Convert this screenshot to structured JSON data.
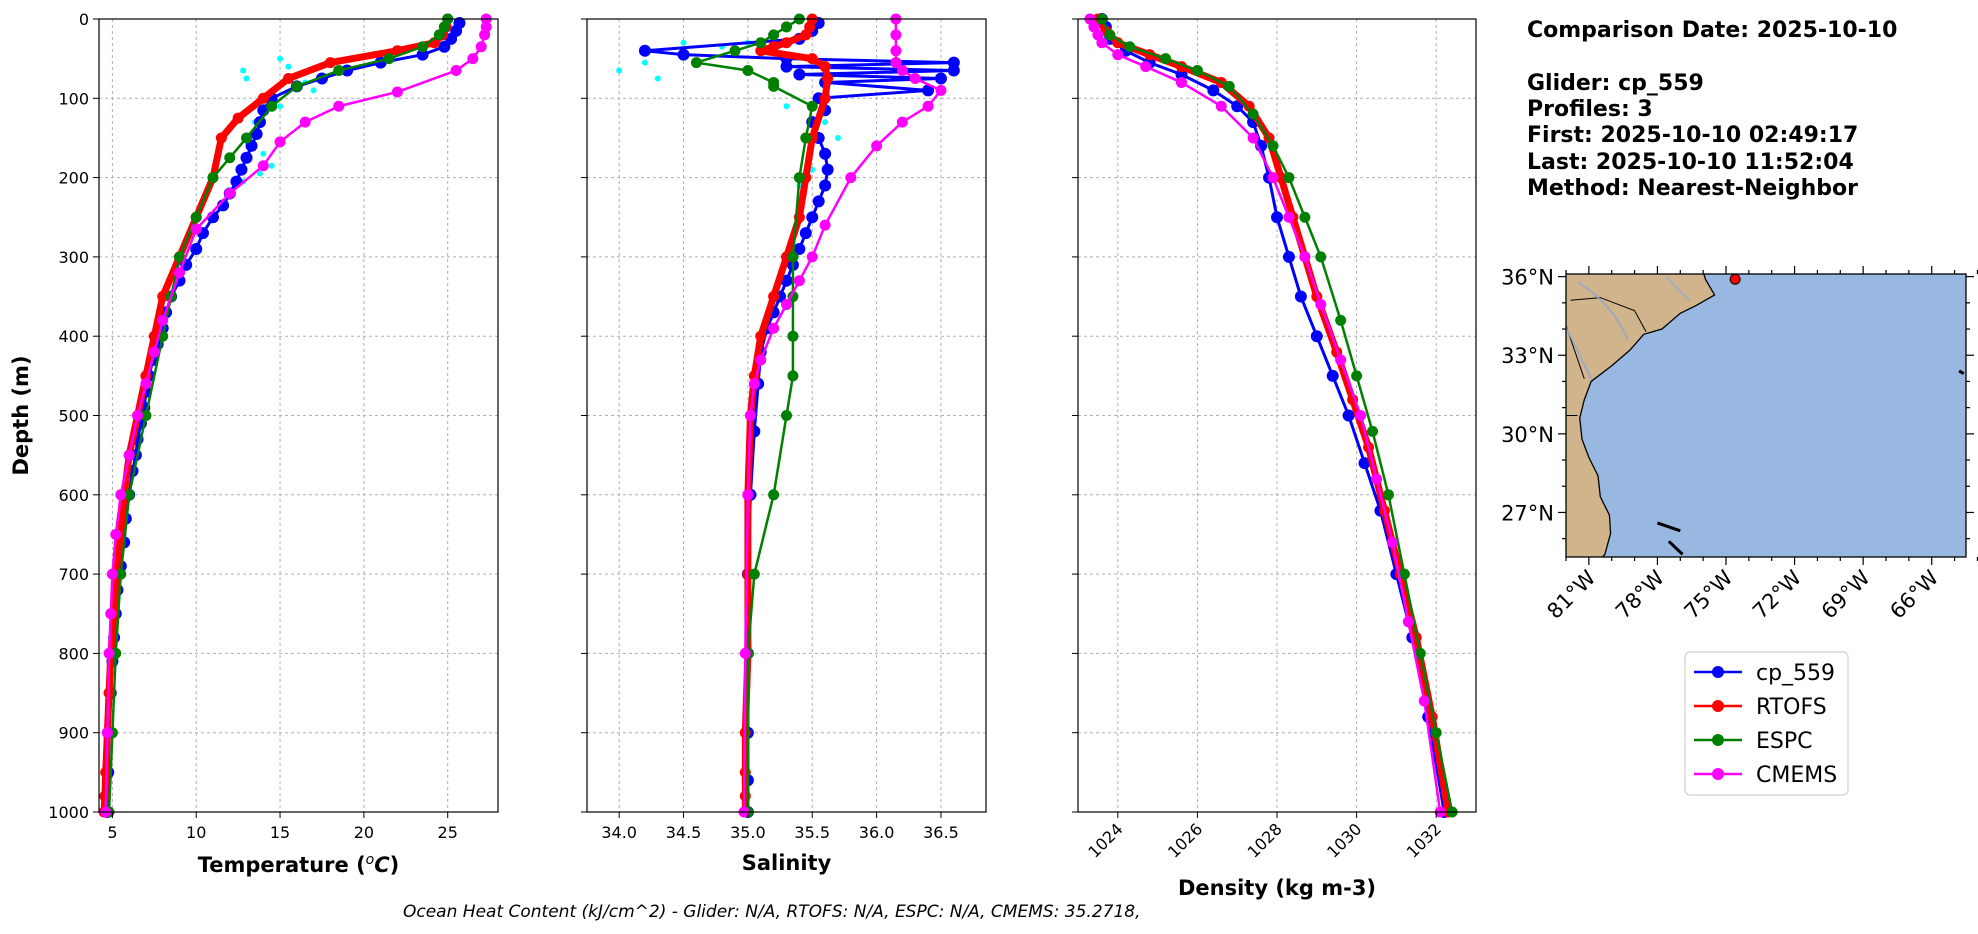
{
  "colors": {
    "cp_559": "#0000ff",
    "RTOFS": "#ff0000",
    "ESPC": "#008000",
    "CMEMS": "#ff00ff",
    "raw_glider": "#00ffff",
    "ocean": "#98b8e2",
    "land": "#d2b48c",
    "grid": "#b0b0b0"
  },
  "info": {
    "comparison_date": "Comparison Date: 2025-10-10",
    "glider": "Glider: cp_559",
    "profiles": "Profiles: 3",
    "first": "First: 2025-10-10 02:49:17",
    "last": "Last: 2025-10-10 11:52:04",
    "method": "Method: Nearest-Neighbor"
  },
  "footer": "Ocean Heat Content (kJ/cm^2) - Glider: N/A,  RTOFS: N/A,  ESPC: N/A,  CMEMS: 35.2718,",
  "legend": {
    "placement": "below-map",
    "entries": [
      "cp_559",
      "RTOFS",
      "ESPC",
      "CMEMS"
    ]
  },
  "map": {
    "lon_ticks": [
      "81°W",
      "78°W",
      "75°W",
      "72°W",
      "69°W",
      "66°W"
    ],
    "lat_ticks": [
      "36°N",
      "33°N",
      "30°N",
      "27°N"
    ],
    "lon_values": [
      -81,
      -78,
      -75,
      -72,
      -69,
      -66
    ],
    "lat_values": [
      36,
      33,
      30,
      27
    ],
    "lon_range": [
      -82,
      -64.5
    ],
    "lat_range": [
      25.3,
      36.1
    ],
    "glider_position": {
      "lon": -74.6,
      "lat": 35.9
    }
  },
  "chart_data": [
    {
      "type": "line",
      "panel": "temperature",
      "xlabel": "Temperature (°C)",
      "ylabel": "Depth (m)",
      "xlim": [
        4.2,
        28
      ],
      "ylim": [
        1000,
        0
      ],
      "y_inverted": true,
      "grid": true,
      "xticks": [
        5,
        10,
        15,
        20,
        25
      ],
      "yticks": [
        0,
        100,
        200,
        300,
        400,
        500,
        600,
        700,
        800,
        900,
        1000
      ],
      "series": [
        {
          "name": "cp_559",
          "kind": "glider",
          "x": [
            25.7,
            25.5,
            25.2,
            24.8,
            23.5,
            21.0,
            19.0,
            17.5,
            16.0,
            14.5,
            14.0,
            13.8,
            13.6,
            13.3,
            13.0,
            12.7,
            12.4,
            12.0,
            11.6,
            11.0,
            10.4,
            10.0,
            9.4,
            9.0,
            8.5,
            8.2,
            8.0,
            7.7,
            7.4,
            7.2,
            7.0,
            6.9,
            6.7,
            6.5,
            6.4,
            6.2,
            6.0,
            5.8,
            5.7,
            5.5,
            5.3,
            5.2,
            5.1,
            5.0,
            4.9,
            4.8,
            4.75,
            4.7
          ],
          "y": [
            5,
            15,
            25,
            35,
            45,
            55,
            65,
            75,
            85,
            100,
            115,
            130,
            145,
            160,
            175,
            190,
            205,
            220,
            235,
            250,
            270,
            290,
            310,
            330,
            350,
            370,
            390,
            410,
            430,
            450,
            470,
            490,
            510,
            530,
            550,
            570,
            600,
            630,
            660,
            690,
            720,
            750,
            780,
            810,
            850,
            900,
            950,
            1000
          ]
        },
        {
          "name": "RTOFS",
          "kind": "model",
          "x": [
            25.0,
            24.9,
            24.7,
            24.2,
            22.0,
            18.0,
            15.5,
            14.0,
            12.5,
            11.5,
            11.0,
            10.0,
            9.0,
            8.0,
            7.5,
            7.0,
            6.5,
            6.0,
            5.7,
            5.5,
            5.2,
            5.1,
            4.9,
            4.8,
            4.7,
            4.6,
            4.55,
            4.5
          ],
          "y": [
            0,
            10,
            20,
            30,
            40,
            55,
            75,
            100,
            125,
            150,
            200,
            250,
            300,
            350,
            400,
            450,
            500,
            550,
            600,
            650,
            700,
            750,
            800,
            850,
            900,
            950,
            980,
            1000
          ]
        },
        {
          "name": "ESPC",
          "kind": "model",
          "x": [
            25.0,
            24.8,
            24.5,
            23.5,
            21.5,
            18.5,
            16.0,
            14.5,
            13.0,
            12.0,
            11.0,
            10.0,
            9.0,
            8.5,
            8.0,
            7.0,
            6.0,
            5.5,
            5.2,
            5.0,
            4.8
          ],
          "y": [
            0,
            10,
            20,
            35,
            50,
            65,
            85,
            110,
            150,
            175,
            200,
            250,
            300,
            350,
            400,
            500,
            600,
            700,
            800,
            900,
            1000
          ]
        },
        {
          "name": "CMEMS",
          "kind": "model",
          "x": [
            27.3,
            27.3,
            27.2,
            27.0,
            26.5,
            25.5,
            22.0,
            18.5,
            16.5,
            15.0,
            14.0,
            12.0,
            10.0,
            9.0,
            8.0,
            7.5,
            7.0,
            6.5,
            6.0,
            5.5,
            5.2,
            5.0,
            4.9,
            4.8,
            4.7,
            4.6
          ],
          "y": [
            0,
            10,
            20,
            35,
            50,
            65,
            92,
            110,
            130,
            155,
            185,
            220,
            265,
            320,
            380,
            420,
            460,
            500,
            550,
            600,
            650,
            700,
            750,
            800,
            900,
            1000
          ]
        },
        {
          "name": "",
          "kind": "raw",
          "x": [
            15.0,
            12.8,
            13.0,
            15.5,
            16.5,
            17.0,
            15.0,
            13.5,
            13.0,
            14.0,
            14.5,
            13.8,
            12.8
          ],
          "y": [
            50,
            65,
            75,
            60,
            80,
            90,
            110,
            130,
            150,
            170,
            185,
            195,
            205
          ]
        }
      ]
    },
    {
      "type": "line",
      "panel": "salinity",
      "xlabel": "Salinity",
      "xlim": [
        33.75,
        36.85
      ],
      "ylim": [
        1000,
        0
      ],
      "y_inverted": true,
      "grid": true,
      "xticks": [
        34.0,
        34.5,
        35.0,
        35.5,
        36.0,
        36.5
      ],
      "series": [
        {
          "name": "cp_559",
          "kind": "glider",
          "x": [
            35.55,
            35.5,
            35.4,
            34.2,
            34.5,
            35.3,
            36.6,
            35.3,
            36.6,
            35.4,
            36.5,
            35.6,
            36.4,
            35.55,
            35.6,
            35.5,
            35.55,
            35.6,
            35.62,
            35.6,
            35.55,
            35.5,
            35.45,
            35.4,
            35.35,
            35.3,
            35.25,
            35.2,
            35.15,
            35.1,
            35.08,
            35.05,
            35.02,
            35.0,
            35.0,
            35.0,
            35.0,
            35.0
          ],
          "y": [
            5,
            15,
            25,
            40,
            45,
            50,
            55,
            60,
            65,
            70,
            75,
            80,
            90,
            100,
            115,
            130,
            150,
            170,
            190,
            210,
            230,
            250,
            270,
            290,
            310,
            330,
            350,
            370,
            390,
            420,
            460,
            520,
            600,
            700,
            800,
            900,
            960,
            1000
          ]
        },
        {
          "name": "RTOFS",
          "kind": "model",
          "x": [
            35.5,
            35.48,
            35.45,
            35.3,
            35.2,
            35.1,
            35.5,
            35.6,
            35.62,
            35.6,
            35.5,
            35.45,
            35.4,
            35.3,
            35.2,
            35.1,
            35.05,
            35.02,
            35.0,
            35.0,
            35.0,
            34.98,
            34.98,
            34.98,
            34.98
          ],
          "y": [
            0,
            10,
            20,
            30,
            35,
            40,
            50,
            60,
            75,
            100,
            150,
            200,
            250,
            300,
            350,
            400,
            450,
            500,
            600,
            700,
            800,
            900,
            950,
            980,
            1000
          ]
        },
        {
          "name": "ESPC",
          "kind": "model",
          "x": [
            35.4,
            35.3,
            35.2,
            35.1,
            34.9,
            34.6,
            35.0,
            35.2,
            35.2,
            35.5,
            35.45,
            35.4,
            35.35,
            35.35,
            35.35,
            35.35,
            35.3,
            35.2,
            35.05,
            35.0,
            35.0
          ],
          "y": [
            0,
            10,
            20,
            30,
            40,
            55,
            65,
            80,
            85,
            110,
            150,
            200,
            300,
            350,
            400,
            450,
            500,
            600,
            700,
            800,
            1000
          ]
        },
        {
          "name": "CMEMS",
          "kind": "model",
          "x": [
            36.15,
            36.15,
            36.15,
            36.15,
            36.2,
            36.3,
            36.5,
            36.4,
            36.2,
            36.0,
            35.8,
            35.6,
            35.5,
            35.4,
            35.3,
            35.2,
            35.1,
            35.05,
            35.02,
            35.0,
            34.98,
            34.97
          ],
          "y": [
            0,
            20,
            40,
            55,
            65,
            75,
            90,
            110,
            130,
            160,
            200,
            260,
            300,
            330,
            360,
            390,
            430,
            460,
            500,
            600,
            800,
            1000
          ]
        },
        {
          "name": "",
          "kind": "raw",
          "x": [
            34.0,
            34.2,
            34.3,
            34.5,
            34.8,
            35.0,
            35.3,
            35.6,
            35.7,
            35.6,
            35.5,
            35.4
          ],
          "y": [
            65,
            55,
            75,
            30,
            35,
            30,
            110,
            130,
            150,
            170,
            190,
            210
          ]
        }
      ]
    },
    {
      "type": "line",
      "panel": "density",
      "xlabel": "Density (kg m-3)",
      "xlim": [
        1023.0,
        1033.0
      ],
      "ylim": [
        1000,
        0
      ],
      "y_inverted": true,
      "grid": true,
      "xticks": [
        1024,
        1026,
        1028,
        1030,
        1032
      ],
      "series": [
        {
          "name": "cp_559",
          "kind": "glider",
          "x": [
            1023.6,
            1023.7,
            1023.8,
            1024.2,
            1024.8,
            1025.6,
            1026.4,
            1027.0,
            1027.4,
            1027.6,
            1027.8,
            1028.0,
            1028.3,
            1028.6,
            1029.0,
            1029.4,
            1029.8,
            1030.2,
            1030.6,
            1031.0,
            1031.4,
            1031.8,
            1032.2
          ],
          "y": [
            0,
            10,
            25,
            40,
            55,
            70,
            90,
            110,
            130,
            160,
            200,
            250,
            300,
            350,
            400,
            450,
            500,
            560,
            620,
            700,
            780,
            880,
            1000
          ]
        },
        {
          "name": "RTOFS",
          "kind": "model",
          "x": [
            1023.5,
            1023.7,
            1024.0,
            1024.8,
            1025.6,
            1026.6,
            1027.3,
            1027.8,
            1028.1,
            1028.4,
            1028.7,
            1029.0,
            1029.5,
            1029.9,
            1030.3,
            1030.7,
            1031.1,
            1031.5,
            1031.9,
            1032.3
          ],
          "y": [
            0,
            15,
            30,
            45,
            60,
            80,
            110,
            150,
            200,
            250,
            300,
            350,
            420,
            480,
            540,
            620,
            700,
            780,
            880,
            1000
          ]
        },
        {
          "name": "ESPC",
          "kind": "model",
          "x": [
            1023.6,
            1023.8,
            1024.3,
            1025.2,
            1026.0,
            1026.8,
            1027.4,
            1027.9,
            1028.3,
            1028.7,
            1029.1,
            1029.6,
            1030.0,
            1030.4,
            1030.8,
            1031.2,
            1031.6,
            1032.0,
            1032.4
          ],
          "y": [
            0,
            20,
            35,
            50,
            65,
            85,
            120,
            160,
            200,
            250,
            300,
            380,
            450,
            520,
            600,
            700,
            800,
            900,
            1000
          ]
        },
        {
          "name": "CMEMS",
          "kind": "model",
          "x": [
            1023.3,
            1023.4,
            1023.5,
            1023.6,
            1024.0,
            1024.7,
            1025.6,
            1026.6,
            1027.4,
            1027.9,
            1028.3,
            1028.7,
            1029.1,
            1029.6,
            1030.1,
            1030.5,
            1030.9,
            1031.3,
            1031.7,
            1032.1
          ],
          "y": [
            0,
            10,
            20,
            30,
            45,
            60,
            80,
            110,
            150,
            200,
            250,
            300,
            360,
            430,
            500,
            580,
            660,
            760,
            860,
            1000
          ]
        }
      ]
    }
  ]
}
